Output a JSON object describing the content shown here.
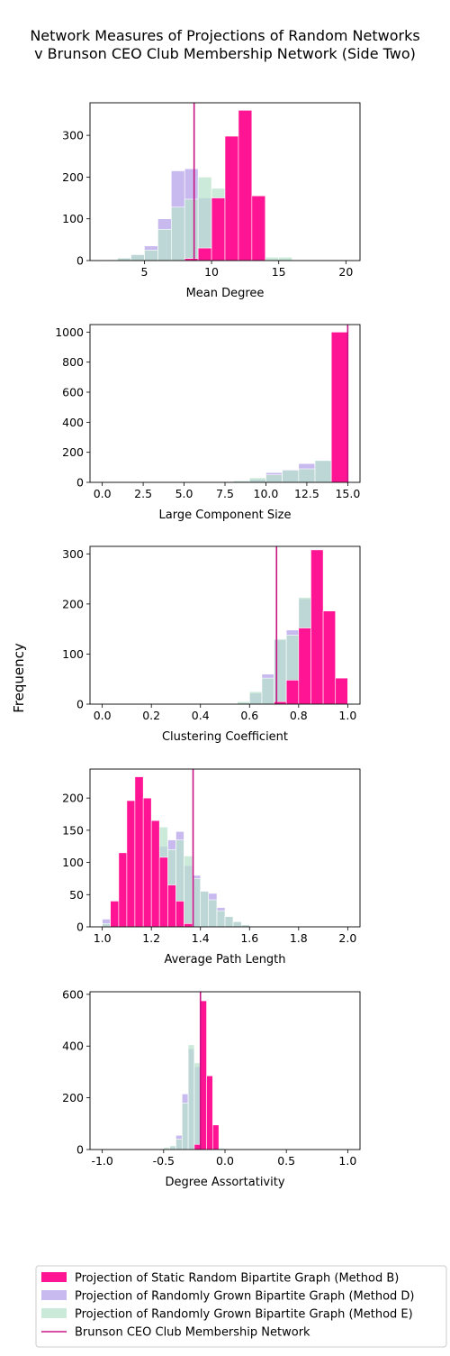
{
  "figure": {
    "title_line1": "Network Measures of Projections of Random Networks",
    "title_line2": "v Brunson CEO Club Membership Network (Side Two)",
    "ylabel": "Frequency"
  },
  "colors": {
    "B": "#ff1493",
    "D": "#b9a6ea",
    "E": "#b8e2cc",
    "overlap": "#a6b8d0",
    "observed": "#c71585"
  },
  "legend": [
    {
      "key": "B",
      "label": "Projection of Static Random Bipartite Graph (Method B)",
      "kind": "patch"
    },
    {
      "key": "D",
      "label": "Projection of Randomly Grown Bipartite Graph (Method D)",
      "kind": "patch"
    },
    {
      "key": "E",
      "label": "Projection of Randomly Grown Bipartite Graph (Method E)",
      "kind": "patch"
    },
    {
      "key": "observed",
      "label": "Brunson CEO Club Membership Network",
      "kind": "line"
    }
  ],
  "chart_data": [
    {
      "type": "bar",
      "xlabel": "Mean Degree",
      "xlim": [
        0.95,
        21.05
      ],
      "ylim": [
        0,
        378
      ],
      "xticks": [
        5,
        10,
        15,
        20
      ],
      "yticks": [
        0,
        100,
        200,
        300
      ],
      "observed": 8.7,
      "series": [
        {
          "key": "B",
          "bins": [
            [
              2,
              3,
              0
            ],
            [
              3,
              4,
              0
            ],
            [
              4,
              5,
              0
            ],
            [
              5,
              6,
              0
            ],
            [
              6,
              7,
              0
            ],
            [
              7,
              8,
              0
            ],
            [
              8,
              9,
              5
            ],
            [
              9,
              10,
              30
            ],
            [
              10,
              11,
              150
            ],
            [
              11,
              12,
              298
            ],
            [
              12,
              13,
              360
            ],
            [
              13,
              14,
              155
            ],
            [
              14,
              15,
              0
            ],
            [
              15,
              16,
              0
            ]
          ]
        },
        {
          "key": "D",
          "bins": [
            [
              2,
              3,
              0
            ],
            [
              3,
              4,
              5
            ],
            [
              4,
              5,
              15
            ],
            [
              5,
              6,
              35
            ],
            [
              6,
              7,
              100
            ],
            [
              7,
              8,
              215
            ],
            [
              8,
              9,
              220
            ],
            [
              9,
              10,
              150
            ],
            [
              10,
              11,
              100
            ],
            [
              11,
              12,
              60
            ],
            [
              12,
              13,
              35
            ],
            [
              13,
              14,
              8
            ],
            [
              14,
              15,
              0
            ],
            [
              15,
              16,
              0
            ]
          ]
        },
        {
          "key": "E",
          "bins": [
            [
              2,
              3,
              2
            ],
            [
              3,
              4,
              6
            ],
            [
              4,
              5,
              14
            ],
            [
              5,
              6,
              25
            ],
            [
              6,
              7,
              75
            ],
            [
              7,
              8,
              128
            ],
            [
              8,
              9,
              147
            ],
            [
              9,
              10,
              200
            ],
            [
              10,
              11,
              173
            ],
            [
              11,
              12,
              130
            ],
            [
              12,
              13,
              55
            ],
            [
              13,
              14,
              25
            ],
            [
              14,
              15,
              8
            ],
            [
              15,
              16,
              8
            ]
          ]
        }
      ]
    },
    {
      "type": "bar",
      "xlabel": "Large Component Size",
      "xlim": [
        -0.75,
        15.75
      ],
      "ylim": [
        0,
        1050
      ],
      "xticks": [
        0.0,
        2.5,
        5.0,
        7.5,
        10.0,
        12.5,
        15.0
      ],
      "yticks": [
        0,
        200,
        400,
        600,
        800,
        1000
      ],
      "observed": 15,
      "series": [
        {
          "key": "B",
          "bins": [
            [
              7,
              8,
              0
            ],
            [
              8,
              9,
              0
            ],
            [
              9,
              10,
              0
            ],
            [
              10,
              11,
              0
            ],
            [
              11,
              12,
              0
            ],
            [
              12,
              13,
              0
            ],
            [
              13,
              14,
              0
            ],
            [
              14,
              15,
              1000
            ]
          ]
        },
        {
          "key": "D",
          "bins": [
            [
              7,
              8,
              3
            ],
            [
              8,
              9,
              8
            ],
            [
              9,
              10,
              20
            ],
            [
              10,
              11,
              65
            ],
            [
              11,
              12,
              85
            ],
            [
              12,
              13,
              125
            ],
            [
              13,
              14,
              145
            ],
            [
              14,
              15,
              250
            ]
          ]
        },
        {
          "key": "E",
          "bins": [
            [
              7,
              8,
              5
            ],
            [
              8,
              9,
              10
            ],
            [
              9,
              10,
              30
            ],
            [
              10,
              11,
              50
            ],
            [
              11,
              12,
              80
            ],
            [
              12,
              13,
              90
            ],
            [
              13,
              14,
              145
            ],
            [
              14,
              15,
              255
            ]
          ]
        }
      ]
    },
    {
      "type": "bar",
      "xlabel": "Clustering Coefficient",
      "xlim": [
        -0.05,
        1.05
      ],
      "ylim": [
        0,
        315
      ],
      "xticks": [
        0.0,
        0.2,
        0.4,
        0.6,
        0.8,
        1.0
      ],
      "yticks": [
        0,
        100,
        200,
        300
      ],
      "observed": 0.71,
      "series": [
        {
          "key": "B",
          "bins": [
            [
              0.55,
              0.6,
              0
            ],
            [
              0.6,
              0.65,
              0
            ],
            [
              0.65,
              0.7,
              0
            ],
            [
              0.7,
              0.75,
              5
            ],
            [
              0.75,
              0.8,
              48
            ],
            [
              0.8,
              0.85,
              152
            ],
            [
              0.85,
              0.9,
              308
            ],
            [
              0.9,
              0.95,
              186
            ],
            [
              0.95,
              1.0,
              52
            ]
          ]
        },
        {
          "key": "D",
          "bins": [
            [
              0.55,
              0.6,
              2
            ],
            [
              0.6,
              0.65,
              22
            ],
            [
              0.65,
              0.7,
              60
            ],
            [
              0.7,
              0.75,
              128
            ],
            [
              0.75,
              0.8,
              148
            ],
            [
              0.8,
              0.85,
              210
            ],
            [
              0.85,
              0.9,
              238
            ],
            [
              0.9,
              0.95,
              88
            ],
            [
              0.95,
              1.0,
              32
            ]
          ]
        },
        {
          "key": "E",
          "bins": [
            [
              0.55,
              0.6,
              5
            ],
            [
              0.6,
              0.65,
              25
            ],
            [
              0.65,
              0.7,
              52
            ],
            [
              0.7,
              0.75,
              130
            ],
            [
              0.75,
              0.8,
              138
            ],
            [
              0.8,
              0.85,
              213
            ],
            [
              0.85,
              0.9,
              250
            ],
            [
              0.9,
              0.95,
              125
            ],
            [
              0.95,
              1.0,
              25
            ]
          ]
        }
      ]
    },
    {
      "type": "bar",
      "xlabel": "Average Path Length",
      "xlim": [
        0.95,
        2.05
      ],
      "ylim": [
        0,
        245
      ],
      "xticks": [
        1.0,
        1.2,
        1.4,
        1.6,
        1.8,
        2.0
      ],
      "yticks": [
        0,
        50,
        100,
        150,
        200
      ],
      "observed": 1.37,
      "series": [
        {
          "key": "B",
          "bins": [
            [
              1.0,
              1.033,
              0
            ],
            [
              1.033,
              1.067,
              40
            ],
            [
              1.067,
              1.1,
              115
            ],
            [
              1.1,
              1.133,
              196
            ],
            [
              1.133,
              1.167,
              233
            ],
            [
              1.167,
              1.2,
              200
            ],
            [
              1.2,
              1.233,
              165
            ],
            [
              1.233,
              1.267,
              108
            ],
            [
              1.267,
              1.3,
              65
            ],
            [
              1.3,
              1.333,
              40
            ],
            [
              1.333,
              1.367,
              5
            ],
            [
              1.367,
              1.4,
              0
            ]
          ]
        },
        {
          "key": "D",
          "bins": [
            [
              1.0,
              1.033,
              12
            ],
            [
              1.033,
              1.067,
              20
            ],
            [
              1.067,
              1.1,
              30
            ],
            [
              1.1,
              1.133,
              60
            ],
            [
              1.133,
              1.167,
              80
            ],
            [
              1.167,
              1.2,
              90
            ],
            [
              1.2,
              1.233,
              100
            ],
            [
              1.233,
              1.267,
              125
            ],
            [
              1.267,
              1.3,
              135
            ],
            [
              1.3,
              1.333,
              148
            ],
            [
              1.333,
              1.367,
              95
            ],
            [
              1.367,
              1.4,
              80
            ],
            [
              1.4,
              1.433,
              56
            ],
            [
              1.433,
              1.467,
              52
            ],
            [
              1.467,
              1.5,
              30
            ],
            [
              1.5,
              1.533,
              16
            ],
            [
              1.533,
              1.567,
              8
            ],
            [
              1.567,
              1.6,
              3
            ]
          ]
        },
        {
          "key": "E",
          "bins": [
            [
              1.0,
              1.033,
              5
            ],
            [
              1.033,
              1.067,
              12
            ],
            [
              1.067,
              1.1,
              30
            ],
            [
              1.1,
              1.133,
              58
            ],
            [
              1.133,
              1.167,
              83
            ],
            [
              1.167,
              1.2,
              122
            ],
            [
              1.2,
              1.233,
              125
            ],
            [
              1.233,
              1.267,
              155
            ],
            [
              1.267,
              1.3,
              120
            ],
            [
              1.3,
              1.333,
              135
            ],
            [
              1.333,
              1.367,
              110
            ],
            [
              1.367,
              1.4,
              75
            ],
            [
              1.4,
              1.433,
              55
            ],
            [
              1.433,
              1.467,
              42
            ],
            [
              1.467,
              1.5,
              25
            ],
            [
              1.5,
              1.533,
              16
            ],
            [
              1.533,
              1.567,
              8
            ],
            [
              1.567,
              1.6,
              3
            ]
          ]
        }
      ]
    },
    {
      "type": "bar",
      "xlabel": "Degree Assortativity",
      "xlim": [
        -1.1,
        1.1
      ],
      "ylim": [
        0,
        610
      ],
      "xticks": [
        -1.0,
        -0.5,
        0.0,
        0.5,
        1.0
      ],
      "yticks": [
        0,
        200,
        400,
        600
      ],
      "observed": -0.2,
      "series": [
        {
          "key": "B",
          "bins": [
            [
              -0.45,
              -0.4,
              0
            ],
            [
              -0.4,
              -0.35,
              0
            ],
            [
              -0.35,
              -0.3,
              0
            ],
            [
              -0.3,
              -0.25,
              0
            ],
            [
              -0.25,
              -0.2,
              20
            ],
            [
              -0.2,
              -0.15,
              575
            ],
            [
              -0.15,
              -0.1,
              285
            ],
            [
              -0.1,
              -0.05,
              95
            ],
            [
              -0.05,
              0.0,
              0
            ]
          ]
        },
        {
          "key": "D",
          "bins": [
            [
              -0.45,
              -0.4,
              10
            ],
            [
              -0.4,
              -0.35,
              55
            ],
            [
              -0.35,
              -0.3,
              215
            ],
            [
              -0.3,
              -0.25,
              390
            ],
            [
              -0.25,
              -0.2,
              320
            ],
            [
              -0.2,
              -0.15,
              220
            ],
            [
              -0.15,
              -0.1,
              65
            ],
            [
              -0.1,
              -0.05,
              10
            ],
            [
              -0.05,
              0.0,
              2
            ]
          ]
        },
        {
          "key": "E",
          "bins": [
            [
              -0.5,
              -0.45,
              8
            ],
            [
              -0.45,
              -0.4,
              15
            ],
            [
              -0.4,
              -0.35,
              40
            ],
            [
              -0.35,
              -0.3,
              180
            ],
            [
              -0.3,
              -0.25,
              405
            ],
            [
              -0.25,
              -0.2,
              335
            ],
            [
              -0.2,
              -0.15,
              215
            ],
            [
              -0.15,
              -0.1,
              60
            ],
            [
              -0.1,
              -0.05,
              12
            ],
            [
              -0.05,
              0.0,
              4
            ]
          ]
        }
      ]
    }
  ]
}
